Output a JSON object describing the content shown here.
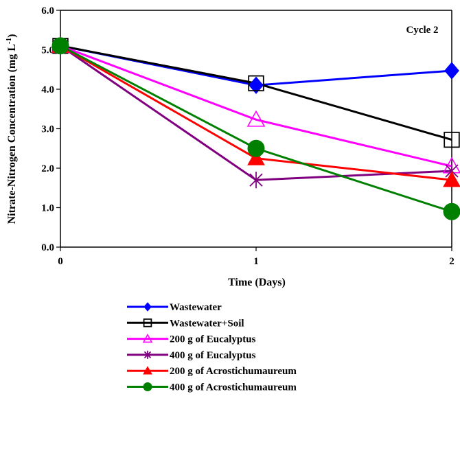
{
  "chart_data": {
    "type": "line",
    "title": "",
    "annotation": "Cycle 2",
    "xlabel": "Time (Days)",
    "ylabel": "Nitrate-Nitrogen Concentration (mg L",
    "ylabel_superscript": "-1",
    "ylabel_close": ")",
    "x": [
      0,
      1,
      2
    ],
    "xlim": [
      0,
      2
    ],
    "ylim": [
      0,
      6
    ],
    "x_ticks": [
      "0",
      "1",
      "2"
    ],
    "y_ticks": [
      "0.0",
      "1.0",
      "2.0",
      "3.0",
      "4.0",
      "5.0",
      "6.0"
    ],
    "grid": false,
    "legend_position": "bottom",
    "series": [
      {
        "name": "Wastewater",
        "values": [
          5.1,
          4.1,
          4.47
        ],
        "color": "#0000ff",
        "marker": "diamond-filled"
      },
      {
        "name": "Wastewater+Soil",
        "values": [
          5.1,
          4.15,
          2.72
        ],
        "color": "#000000",
        "marker": "square-open"
      },
      {
        "name": "200 g of Eucalyptus",
        "values": [
          5.1,
          3.23,
          2.05
        ],
        "color": "#ff00ff",
        "marker": "triangle-open"
      },
      {
        "name": "400 g of Eucalyptus",
        "values": [
          5.1,
          1.7,
          1.93
        ],
        "color": "#800080",
        "marker": "star"
      },
      {
        "name": "200 g of Acrostichumaureum",
        "values": [
          5.1,
          2.25,
          1.7
        ],
        "color": "#ff0000",
        "marker": "triangle-filled"
      },
      {
        "name": "400 g of Acrostichumaureum",
        "values": [
          5.1,
          2.5,
          0.9
        ],
        "color": "#008000",
        "marker": "circle-filled"
      }
    ]
  }
}
